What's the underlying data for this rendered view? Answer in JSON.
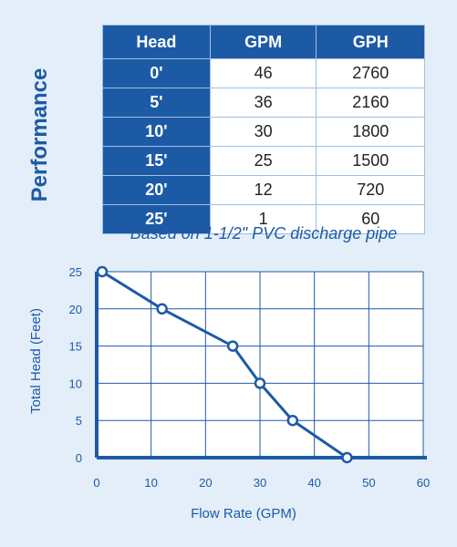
{
  "side_title": "Performance",
  "table": {
    "headers": [
      "Head",
      "GPM",
      "GPH"
    ],
    "rows": [
      [
        "0'",
        "46",
        "2760"
      ],
      [
        "5'",
        "36",
        "2160"
      ],
      [
        "10'",
        "30",
        "1800"
      ],
      [
        "15'",
        "25",
        "1500"
      ],
      [
        "20'",
        "12",
        "720"
      ],
      [
        "25'",
        "1",
        "60"
      ]
    ]
  },
  "note": "Based on 1-1/2\" PVC discharge pipe",
  "colors": {
    "accent": "#1d5aa6",
    "grid": "#1d5aa6",
    "background": "#e3eef8"
  },
  "chart_data": {
    "type": "line",
    "xlabel": "Flow Rate (GPM)",
    "ylabel": "Total Head (Feet)",
    "xlim": [
      0,
      60
    ],
    "ylim": [
      0,
      25
    ],
    "xticks": [
      0,
      10,
      20,
      30,
      40,
      50,
      60
    ],
    "yticks": [
      0,
      5,
      10,
      15,
      20,
      25
    ],
    "grid": true,
    "series": [
      {
        "x": [
          1,
          12,
          25,
          30,
          36,
          46
        ],
        "y": [
          25,
          20,
          15,
          10,
          5,
          0
        ]
      }
    ]
  }
}
